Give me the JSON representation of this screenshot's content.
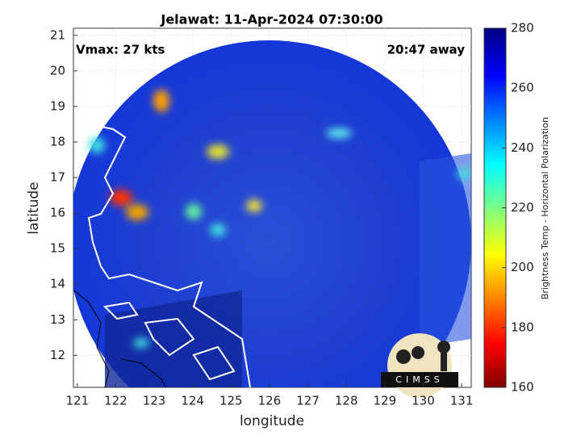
{
  "title": "Jelawat: 11-Apr-2024 07:30:00",
  "annotations": {
    "vmax": "Vmax: 27 kts",
    "age": "20:47 away"
  },
  "axes": {
    "xlabel": "longitude",
    "ylabel": "latitude",
    "xlim": [
      120.9,
      131.25
    ],
    "xticks": [
      121,
      122,
      123,
      124,
      125,
      126,
      127,
      128,
      129,
      130,
      131
    ],
    "ylim": [
      11.1,
      21.2
    ],
    "yticks": [
      12,
      13,
      14,
      15,
      16,
      17,
      18,
      19,
      20,
      21
    ],
    "grid": true
  },
  "colorbar": {
    "label": "Brightness Temp - Horizontal Polarization",
    "lim": [
      160,
      280
    ],
    "ticks": [
      160,
      180,
      200,
      220,
      240,
      260,
      280
    ]
  },
  "logo": "CIMSS"
}
